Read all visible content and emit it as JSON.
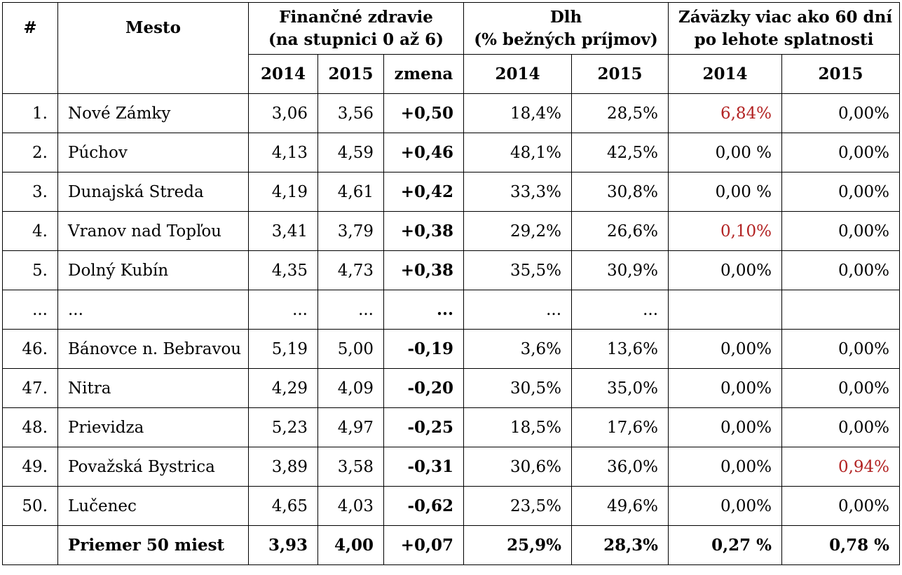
{
  "colors": {
    "highlight": "#b22222"
  },
  "header": {
    "hash": "#",
    "mesto": "Mesto",
    "fin_line1": "Finančné zdravie",
    "fin_line2": "(na stupnici 0 až 6)",
    "dlh_line1": "Dlh",
    "dlh_line2": "(% bežných príjmov)",
    "zav_line1": "Záväzky viac ako 60 dní",
    "zav_line2": "po lehote splatnosti",
    "sub": [
      "2014",
      "2015",
      "zmena",
      "2014",
      "2015",
      "2014",
      "2015"
    ]
  },
  "rows": [
    {
      "rank": "1.",
      "city": "Nové Zámky",
      "fin2014": "3,06",
      "fin2015": "3,56",
      "change": "+0,50",
      "dlh2014": "18,4%",
      "dlh2015": "28,5%",
      "zav2014": "6,84%",
      "zav2015": "0,00%",
      "red2014": true,
      "red2015": false
    },
    {
      "rank": "2.",
      "city": "Púchov",
      "fin2014": "4,13",
      "fin2015": "4,59",
      "change": "+0,46",
      "dlh2014": "48,1%",
      "dlh2015": "42,5%",
      "zav2014": "0,00 %",
      "zav2015": "0,00%",
      "red2014": false,
      "red2015": false
    },
    {
      "rank": "3.",
      "city": "Dunajská Streda",
      "fin2014": "4,19",
      "fin2015": "4,61",
      "change": "+0,42",
      "dlh2014": "33,3%",
      "dlh2015": "30,8%",
      "zav2014": "0,00 %",
      "zav2015": "0,00%",
      "red2014": false,
      "red2015": false
    },
    {
      "rank": "4.",
      "city": "Vranov nad Topľou",
      "fin2014": "3,41",
      "fin2015": "3,79",
      "change": "+0,38",
      "dlh2014": "29,2%",
      "dlh2015": "26,6%",
      "zav2014": "0,10%",
      "zav2015": "0,00%",
      "red2014": true,
      "red2015": false
    },
    {
      "rank": "5.",
      "city": "Dolný Kubín",
      "fin2014": "4,35",
      "fin2015": "4,73",
      "change": "+0,38",
      "dlh2014": "35,5%",
      "dlh2015": "30,9%",
      "zav2014": "0,00%",
      "zav2015": "0,00%",
      "red2014": false,
      "red2015": false
    },
    {
      "rank": "...",
      "city": "...",
      "fin2014": "...",
      "fin2015": "...",
      "change": "...",
      "dlh2014": "...",
      "dlh2015": "...",
      "zav2014": "",
      "zav2015": "",
      "red2014": false,
      "red2015": false
    },
    {
      "rank": "46.",
      "city": "Bánovce n. Bebravou",
      "fin2014": "5,19",
      "fin2015": "5,00",
      "change": "-0,19",
      "dlh2014": "3,6%",
      "dlh2015": "13,6%",
      "zav2014": "0,00%",
      "zav2015": "0,00%",
      "red2014": false,
      "red2015": false
    },
    {
      "rank": "47.",
      "city": "Nitra",
      "fin2014": "4,29",
      "fin2015": "4,09",
      "change": "-0,20",
      "dlh2014": "30,5%",
      "dlh2015": "35,0%",
      "zav2014": "0,00%",
      "zav2015": "0,00%",
      "red2014": false,
      "red2015": false
    },
    {
      "rank": "48.",
      "city": "Prievidza",
      "fin2014": "5,23",
      "fin2015": "4,97",
      "change": "-0,25",
      "dlh2014": "18,5%",
      "dlh2015": "17,6%",
      "zav2014": "0,00%",
      "zav2015": "0,00%",
      "red2014": false,
      "red2015": false
    },
    {
      "rank": "49.",
      "city": "Považská Bystrica",
      "fin2014": "3,89",
      "fin2015": "3,58",
      "change": "-0,31",
      "dlh2014": "30,6%",
      "dlh2015": "36,0%",
      "zav2014": "0,00%",
      "zav2015": "0,94%",
      "red2014": false,
      "red2015": true
    },
    {
      "rank": "50.",
      "city": "Lučenec",
      "fin2014": "4,65",
      "fin2015": "4,03",
      "change": "-0,62",
      "dlh2014": "23,5%",
      "dlh2015": "49,6%",
      "zav2014": "0,00%",
      "zav2015": "0,00%",
      "red2014": false,
      "red2015": false
    }
  ],
  "footer": {
    "rank": "",
    "city": "Priemer 50 miest",
    "fin2014": "3,93",
    "fin2015": "4,00",
    "change": "+0,07",
    "dlh2014": "25,9%",
    "dlh2015": "28,3%",
    "zav2014": "0,27 %",
    "zav2015": "0,78 %"
  }
}
